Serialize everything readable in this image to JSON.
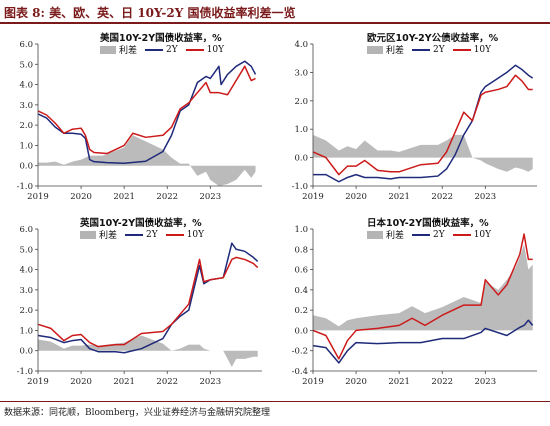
{
  "title": "图表 8:  美、欧、英、日 10Y-2Y 国债收益率利差一览",
  "source": "数据来源：同花顺，Bloomberg，兴业证券经济与金融研究院整理",
  "legend": {
    "spread": "利差",
    "two": "2Y",
    "ten": "10Y"
  },
  "colors": {
    "spread": "#b4b4b4",
    "two": "#1f2a7a",
    "ten": "#cc1a1a"
  },
  "chart_data": [
    {
      "type": "area",
      "title": "美国10Y-2Y国债收益率，%",
      "ylim": [
        -1.0,
        6.0
      ],
      "yticks": [
        "6.0",
        "5.0",
        "4.0",
        "3.0",
        "2.0",
        "1.0",
        "0.0",
        "-1.0"
      ],
      "xlim": [
        2019.0,
        2024.2
      ],
      "xticks": [
        "2019",
        "2020",
        "2021",
        "2022",
        "2023"
      ],
      "series": [
        {
          "name": "2Y",
          "x": [
            2019.0,
            2019.2,
            2019.4,
            2019.6,
            2019.8,
            2020.0,
            2020.1,
            2020.2,
            2020.3,
            2020.6,
            2021.0,
            2021.5,
            2021.9,
            2022.1,
            2022.3,
            2022.5,
            2022.7,
            2022.9,
            2023.0,
            2023.2,
            2023.25,
            2023.4,
            2023.6,
            2023.8,
            2023.95,
            2024.05
          ],
          "values": [
            2.55,
            2.35,
            1.9,
            1.6,
            1.6,
            1.55,
            1.35,
            0.3,
            0.2,
            0.15,
            0.12,
            0.22,
            0.7,
            1.5,
            2.7,
            3.0,
            4.1,
            4.4,
            4.3,
            4.9,
            4.0,
            4.5,
            4.9,
            5.15,
            4.9,
            4.5
          ]
        },
        {
          "name": "10Y",
          "x": [
            2019.0,
            2019.2,
            2019.4,
            2019.6,
            2019.8,
            2020.0,
            2020.1,
            2020.2,
            2020.3,
            2020.6,
            2021.0,
            2021.2,
            2021.5,
            2021.9,
            2022.1,
            2022.3,
            2022.5,
            2022.7,
            2022.9,
            2023.0,
            2023.2,
            2023.4,
            2023.6,
            2023.8,
            2023.95,
            2024.05
          ],
          "values": [
            2.7,
            2.5,
            2.1,
            1.6,
            1.8,
            1.85,
            1.5,
            0.8,
            0.65,
            0.6,
            1.0,
            1.6,
            1.4,
            1.5,
            1.9,
            2.8,
            3.1,
            3.6,
            4.1,
            3.6,
            3.6,
            3.5,
            4.2,
            4.9,
            4.2,
            4.3
          ]
        },
        {
          "name": "利差",
          "x": [
            2019.0,
            2019.2,
            2019.4,
            2019.6,
            2019.8,
            2020.0,
            2020.2,
            2020.5,
            2021.0,
            2021.2,
            2021.5,
            2021.9,
            2022.1,
            2022.3,
            2022.5,
            2022.7,
            2022.9,
            2023.0,
            2023.2,
            2023.4,
            2023.6,
            2023.8,
            2023.95,
            2024.05
          ],
          "values": [
            0.15,
            0.15,
            0.2,
            0.05,
            0.2,
            0.3,
            0.5,
            0.5,
            0.9,
            1.5,
            1.2,
            0.8,
            0.4,
            0.1,
            0.1,
            -0.5,
            -0.3,
            -0.7,
            -1.0,
            -0.9,
            -0.7,
            -0.2,
            -0.6,
            -0.3
          ]
        }
      ]
    },
    {
      "type": "area",
      "title": "欧元区10Y-2Y公债收益率，%",
      "ylim": [
        -1.0,
        4.0
      ],
      "yticks": [
        "4.0",
        "3.0",
        "2.0",
        "1.0",
        "0.0",
        "-1.0"
      ],
      "xlim": [
        2019.0,
        2024.2
      ],
      "xticks": [
        "2019",
        "2020",
        "2021",
        "2022",
        "2023"
      ],
      "series": [
        {
          "name": "2Y",
          "x": [
            2019.0,
            2019.3,
            2019.6,
            2019.8,
            2020.0,
            2020.2,
            2020.5,
            2020.8,
            2021.0,
            2021.5,
            2021.9,
            2022.1,
            2022.3,
            2022.5,
            2022.7,
            2022.9,
            2023.0,
            2023.3,
            2023.5,
            2023.7,
            2023.85,
            2024.0,
            2024.1
          ],
          "values": [
            -0.6,
            -0.6,
            -0.85,
            -0.7,
            -0.6,
            -0.7,
            -0.7,
            -0.75,
            -0.7,
            -0.7,
            -0.65,
            -0.4,
            0.1,
            0.8,
            1.3,
            2.3,
            2.5,
            2.8,
            3.0,
            3.25,
            3.1,
            2.9,
            2.8
          ]
        },
        {
          "name": "10Y",
          "x": [
            2019.0,
            2019.3,
            2019.6,
            2019.8,
            2020.0,
            2020.2,
            2020.5,
            2020.8,
            2021.0,
            2021.5,
            2021.9,
            2022.1,
            2022.3,
            2022.5,
            2022.7,
            2022.9,
            2023.0,
            2023.3,
            2023.5,
            2023.7,
            2023.85,
            2024.0,
            2024.1
          ],
          "values": [
            0.2,
            0.0,
            -0.6,
            -0.3,
            -0.3,
            -0.1,
            -0.45,
            -0.5,
            -0.5,
            -0.25,
            -0.2,
            0.2,
            0.9,
            1.6,
            1.3,
            2.2,
            2.3,
            2.4,
            2.5,
            2.9,
            2.7,
            2.4,
            2.4
          ]
        },
        {
          "name": "利差",
          "x": [
            2019.0,
            2019.3,
            2019.6,
            2019.8,
            2020.0,
            2020.2,
            2020.5,
            2020.8,
            2021.0,
            2021.5,
            2021.9,
            2022.1,
            2022.3,
            2022.5,
            2022.7,
            2022.9,
            2023.0,
            2023.3,
            2023.5,
            2023.7,
            2023.85,
            2024.0,
            2024.1
          ],
          "values": [
            0.8,
            0.6,
            0.25,
            0.4,
            0.3,
            0.6,
            0.25,
            0.25,
            0.2,
            0.45,
            0.45,
            0.6,
            0.8,
            0.8,
            0.0,
            -0.1,
            -0.2,
            -0.4,
            -0.5,
            -0.35,
            -0.4,
            -0.5,
            -0.4
          ]
        }
      ]
    },
    {
      "type": "area",
      "title": "英国10Y-2Y国债收益率，%",
      "ylim": [
        -1.0,
        6.0
      ],
      "yticks": [
        "6.0",
        "5.0",
        "4.0",
        "3.0",
        "2.0",
        "1.0",
        "0.0",
        "-1.0"
      ],
      "xlim": [
        2019.0,
        2024.2
      ],
      "xticks": [
        "2019",
        "2020",
        "2021",
        "2022",
        "2023"
      ],
      "series": [
        {
          "name": "2Y",
          "x": [
            2019.0,
            2019.3,
            2019.6,
            2019.8,
            2020.0,
            2020.2,
            2020.4,
            2020.8,
            2021.0,
            2021.4,
            2021.9,
            2022.1,
            2022.3,
            2022.5,
            2022.75,
            2022.85,
            2023.0,
            2023.3,
            2023.5,
            2023.6,
            2023.8,
            2024.0,
            2024.1
          ],
          "values": [
            0.75,
            0.65,
            0.4,
            0.5,
            0.55,
            0.1,
            -0.05,
            -0.05,
            -0.1,
            0.1,
            0.6,
            1.3,
            1.7,
            2.0,
            4.2,
            3.3,
            3.5,
            3.6,
            5.3,
            5.0,
            4.9,
            4.6,
            4.4
          ]
        },
        {
          "name": "10Y",
          "x": [
            2019.0,
            2019.3,
            2019.6,
            2019.8,
            2020.0,
            2020.2,
            2020.4,
            2020.8,
            2021.0,
            2021.4,
            2021.9,
            2022.1,
            2022.3,
            2022.5,
            2022.75,
            2022.85,
            2023.0,
            2023.3,
            2023.5,
            2023.6,
            2023.8,
            2024.0,
            2024.1
          ],
          "values": [
            1.3,
            1.1,
            0.5,
            0.75,
            0.8,
            0.4,
            0.2,
            0.3,
            0.3,
            0.85,
            0.95,
            1.3,
            1.8,
            2.3,
            4.5,
            3.4,
            3.5,
            3.6,
            4.5,
            4.6,
            4.5,
            4.3,
            4.1
          ]
        },
        {
          "name": "利差",
          "x": [
            2019.0,
            2019.3,
            2019.6,
            2019.8,
            2020.0,
            2020.2,
            2020.4,
            2020.8,
            2021.0,
            2021.4,
            2021.9,
            2022.1,
            2022.3,
            2022.5,
            2022.75,
            2022.85,
            2023.0,
            2023.3,
            2023.5,
            2023.6,
            2023.8,
            2024.0,
            2024.1
          ],
          "values": [
            0.55,
            0.45,
            0.1,
            0.25,
            0.25,
            0.3,
            0.25,
            0.35,
            0.4,
            0.75,
            0.35,
            0.0,
            0.1,
            0.3,
            0.3,
            0.1,
            0.0,
            0.0,
            -0.8,
            -0.4,
            -0.4,
            -0.3,
            -0.3
          ]
        }
      ]
    },
    {
      "type": "area",
      "title": "日本10Y-2Y国债收益率，%",
      "ylim": [
        -0.4,
        1.0
      ],
      "yticks": [
        "1.0",
        "0.8",
        "0.6",
        "0.4",
        "0.2",
        "0.0",
        "-0.2",
        "-0.4"
      ],
      "xlim": [
        2019.0,
        2024.2
      ],
      "xticks": [
        "2019",
        "2020",
        "2021",
        "2022",
        "2023"
      ],
      "series": [
        {
          "name": "2Y",
          "x": [
            2019.0,
            2019.3,
            2019.6,
            2019.8,
            2020.0,
            2020.5,
            2021.0,
            2021.5,
            2022.0,
            2022.5,
            2022.9,
            2023.0,
            2023.5,
            2023.8,
            2023.9,
            2024.0,
            2024.1
          ],
          "values": [
            -0.15,
            -0.17,
            -0.32,
            -0.2,
            -0.12,
            -0.13,
            -0.12,
            -0.12,
            -0.08,
            -0.08,
            -0.02,
            0.02,
            -0.05,
            0.03,
            0.05,
            0.1,
            0.05
          ]
        },
        {
          "name": "10Y",
          "x": [
            2019.0,
            2019.3,
            2019.6,
            2019.8,
            2020.0,
            2020.5,
            2021.0,
            2021.3,
            2021.6,
            2022.0,
            2022.5,
            2022.9,
            2023.0,
            2023.3,
            2023.5,
            2023.7,
            2023.8,
            2023.9,
            2024.0,
            2024.1
          ],
          "values": [
            0.0,
            -0.05,
            -0.28,
            -0.1,
            0.0,
            0.02,
            0.05,
            0.12,
            0.05,
            0.15,
            0.25,
            0.25,
            0.5,
            0.35,
            0.45,
            0.65,
            0.75,
            0.95,
            0.7,
            0.7
          ]
        },
        {
          "name": "利差",
          "x": [
            2019.0,
            2019.3,
            2019.6,
            2019.8,
            2020.0,
            2020.5,
            2021.0,
            2021.3,
            2021.6,
            2022.0,
            2022.5,
            2022.9,
            2023.0,
            2023.3,
            2023.5,
            2023.7,
            2023.8,
            2023.9,
            2024.0,
            2024.1
          ],
          "values": [
            0.15,
            0.12,
            0.04,
            0.1,
            0.12,
            0.15,
            0.17,
            0.24,
            0.17,
            0.23,
            0.33,
            0.27,
            0.48,
            0.4,
            0.5,
            0.62,
            0.72,
            0.85,
            0.6,
            0.65
          ]
        }
      ]
    }
  ]
}
